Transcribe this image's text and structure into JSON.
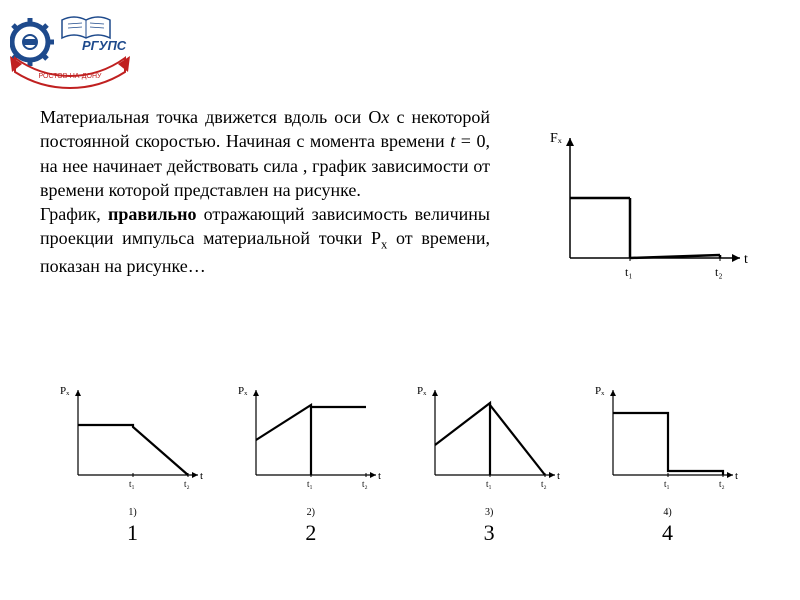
{
  "logo": {
    "text_top": "РГУПС",
    "text_bottom": "РОСТОВ-НА-ДОНУ",
    "gear_color": "#1e4a8c",
    "red_color": "#c02020",
    "blue_color": "#1e4a8c"
  },
  "problem": {
    "paragraph1_a": "Материальная точка движется вдоль оси О",
    "paragraph1_axis": "х",
    "paragraph1_b": " с некоторой постоянной скоростью. Начиная с момента времени ",
    "paragraph1_var": "t",
    "paragraph1_c": " = 0, на нее начинает действовать сила , график зависимости от времени которой представлен на рисунке.",
    "paragraph2_a": "График, ",
    "paragraph2_bold": "правильно",
    "paragraph2_b": " отражающий зависимость величины проекции импульса материальной точки Р",
    "paragraph2_sub": "x",
    "paragraph2_c": " от времени, показан на рисунке…"
  },
  "force_chart": {
    "type": "line",
    "ylabel": "Fₓ",
    "xlabel": "t",
    "xticks": [
      "t₁",
      "t₂"
    ],
    "segments": [
      {
        "from": [
          0,
          60
        ],
        "to": [
          60,
          60
        ]
      },
      {
        "from": [
          60,
          60
        ],
        "to": [
          60,
          0
        ]
      },
      {
        "from": [
          60,
          0
        ],
        "to": [
          150,
          3
        ]
      },
      {
        "from": [
          150,
          3
        ],
        "to": [
          150,
          0
        ]
      }
    ],
    "line_color": "#000000",
    "line_width": 2.5,
    "axis_color": "#000000",
    "background_color": "#ffffff",
    "tick_fontsize": 12,
    "label_fontsize": 14
  },
  "answers": [
    {
      "id": 1,
      "small_label": "1)",
      "big_label": "1",
      "ylabel": "Pₓ",
      "xlabel": "t",
      "xticks": [
        "t₁",
        "t₂"
      ],
      "polyline": [
        [
          0,
          50
        ],
        [
          55,
          50
        ],
        [
          55,
          48
        ],
        [
          110,
          0
        ]
      ],
      "line_color": "#000000",
      "line_width": 2.2
    },
    {
      "id": 2,
      "small_label": "2)",
      "big_label": "2",
      "ylabel": "Pₓ",
      "xlabel": "t",
      "xticks": [
        "t₁",
        "t₂"
      ],
      "polyline": [
        [
          0,
          35
        ],
        [
          55,
          70
        ],
        [
          55,
          68
        ],
        [
          110,
          68
        ]
      ],
      "extra_v": [
        [
          55,
          0
        ],
        [
          55,
          68
        ]
      ],
      "line_color": "#000000",
      "line_width": 2.2
    },
    {
      "id": 3,
      "small_label": "3)",
      "big_label": "3",
      "ylabel": "Pₓ",
      "xlabel": "t",
      "xticks": [
        "t₁",
        "t₂"
      ],
      "polyline": [
        [
          0,
          30
        ],
        [
          55,
          72
        ],
        [
          55,
          70
        ],
        [
          110,
          0
        ]
      ],
      "extra_v": [
        [
          55,
          0
        ],
        [
          55,
          72
        ]
      ],
      "line_color": "#000000",
      "line_width": 2.2
    },
    {
      "id": 4,
      "small_label": "4)",
      "big_label": "4",
      "ylabel": "Pₓ",
      "xlabel": "t",
      "xticks": [
        "t₁",
        "t₂"
      ],
      "polyline": [
        [
          0,
          62
        ],
        [
          55,
          62
        ],
        [
          55,
          4
        ],
        [
          110,
          4
        ],
        [
          110,
          0
        ]
      ],
      "line_color": "#000000",
      "line_width": 2.2
    }
  ]
}
